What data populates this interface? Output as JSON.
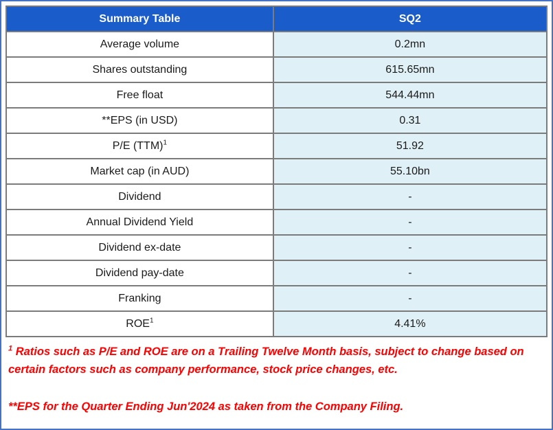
{
  "table": {
    "header": {
      "col1": "Summary Table",
      "col2": "SQ2"
    },
    "rows": [
      {
        "label": "Average volume",
        "value": "0.2mn"
      },
      {
        "label": "Shares outstanding",
        "value": "615.65mn"
      },
      {
        "label": "Free float",
        "value": "544.44mn"
      },
      {
        "label": "**EPS (in USD)",
        "value": "0.31"
      },
      {
        "label": "P/E (TTM)",
        "label_sup": "1",
        "value": "51.92"
      },
      {
        "label": "Market cap (in AUD)",
        "value": "55.10bn"
      },
      {
        "label": "Dividend",
        "value": "-"
      },
      {
        "label": "Annual Dividend Yield",
        "value": "-"
      },
      {
        "label": "Dividend ex-date",
        "value": "-"
      },
      {
        "label": "Dividend pay-date",
        "value": "-"
      },
      {
        "label": "Franking",
        "value": "-"
      },
      {
        "label": "ROE",
        "label_sup": "1",
        "value": "4.41%"
      }
    ]
  },
  "footnotes": {
    "note1_sup": "1",
    "note1_text": " Ratios such as P/E and ROE are on a Trailing Twelve Month basis, subject to change based on certain factors such as company performance, stock price changes, etc.",
    "note2_text": "**EPS for the Quarter Ending Jun'2024 as taken from the Company Filing."
  },
  "colors": {
    "header_bg": "#1A5CC9",
    "header_text": "#FFFFFF",
    "value_cell_bg": "#DFF0F6",
    "grid_border": "#7B7B7B",
    "frame_border": "#4472C4",
    "footnote_text": "#FF0000"
  }
}
